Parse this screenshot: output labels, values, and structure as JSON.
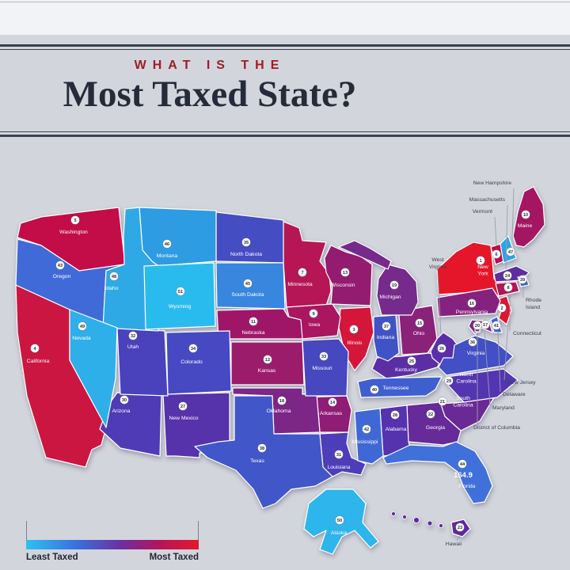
{
  "header": {
    "kicker": "WHAT IS THE",
    "title": "Most Taxed State?"
  },
  "legend": {
    "least_label": "Least Taxed",
    "most_label": "Most Taxed",
    "gradient_left": "#2cbbee",
    "gradient_right": "#e5182b"
  },
  "chart_data": {
    "type": "heatmap",
    "title": "What Is the Most Taxed State?",
    "legend": [
      "Least Taxed",
      "Most Taxed"
    ],
    "note": "US choropleth; each state shows its tax rank badge, 1 = most taxed, 51 = least taxed",
    "series": "map.states"
  },
  "map": {
    "background": "#d3d5dc",
    "badge_fill": "#ffffff",
    "badge_text_color": "#1e2840",
    "label_color": "#ffffff",
    "callout_color": "#3a4150",
    "leader_color": "#9aa0ab",
    "color_stops": [
      [
        1,
        "#e5182b"
      ],
      [
        5,
        "#c2104a"
      ],
      [
        9,
        "#aa155e"
      ],
      [
        14,
        "#8f1f74"
      ],
      [
        18,
        "#7b2887"
      ],
      [
        23,
        "#612c9e"
      ],
      [
        28,
        "#5531ae"
      ],
      [
        33,
        "#4747c0"
      ],
      [
        37,
        "#4153c6"
      ],
      [
        41,
        "#3f62d2"
      ],
      [
        44,
        "#3f70da"
      ],
      [
        46,
        "#2f9ce2"
      ],
      [
        48,
        "#2fa9e6"
      ],
      [
        51,
        "#2cbbee"
      ]
    ],
    "states": [
      {
        "id": "NY",
        "name": "New York",
        "rank": 1
      },
      {
        "id": "NJ",
        "name": "New Jersey",
        "rank": 2
      },
      {
        "id": "IL",
        "name": "Illinois",
        "rank": 3
      },
      {
        "id": "CA",
        "name": "California",
        "rank": 4
      },
      {
        "id": "WA",
        "name": "Washington",
        "rank": 5
      },
      {
        "id": "VT",
        "name": "Vermont",
        "rank": 6
      },
      {
        "id": "MN",
        "name": "Minnesota",
        "rank": 7
      },
      {
        "id": "CT",
        "name": "Connecticut",
        "rank": 8
      },
      {
        "id": "IA",
        "name": "Iowa",
        "rank": 9
      },
      {
        "id": "ME",
        "name": "Maine",
        "rank": 10
      },
      {
        "id": "NE",
        "name": "Nebraska",
        "rank": 11
      },
      {
        "id": "KS",
        "name": "Kansas",
        "rank": 12
      },
      {
        "id": "WI",
        "name": "Wisconsin",
        "rank": 13
      },
      {
        "id": "AR",
        "name": "Arkansas",
        "rank": 14
      },
      {
        "id": "OH",
        "name": "Ohio",
        "rank": 15
      },
      {
        "id": "PA",
        "name": "Pennsylvania",
        "rank": 16
      },
      {
        "id": "MD",
        "name": "Maryland",
        "rank": 17
      },
      {
        "id": "OK",
        "name": "Oklahoma",
        "rank": 18
      },
      {
        "id": "MI",
        "name": "Michigan",
        "rank": 19
      },
      {
        "id": "DC",
        "name": "District of Columbia",
        "rank": 20
      },
      {
        "id": "SC",
        "name": "South Carolina",
        "rank": 21
      },
      {
        "id": "GA",
        "name": "Georgia",
        "rank": 22
      },
      {
        "id": "HI",
        "name": "Hawaii",
        "rank": 23
      },
      {
        "id": "MA",
        "name": "Massachusetts",
        "rank": 24
      },
      {
        "id": "KY",
        "name": "Kentucky",
        "rank": 25
      },
      {
        "id": "WV",
        "name": "West Virginia",
        "rank": 26
      },
      {
        "id": "NM",
        "name": "New Mexico",
        "rank": 27
      },
      {
        "id": "AL",
        "name": "Alabama",
        "rank": 28
      },
      {
        "id": "NC",
        "name": "North Carolina",
        "rank": 29
      },
      {
        "id": "AZ",
        "name": "Arizona",
        "rank": 30
      },
      {
        "id": "LA",
        "name": "Louisiana",
        "rank": 31
      },
      {
        "id": "UT",
        "name": "Utah",
        "rank": 32
      },
      {
        "id": "MO",
        "name": "Missouri",
        "rank": 33
      },
      {
        "id": "CO",
        "name": "Colorado",
        "rank": 34
      },
      {
        "id": "ND",
        "name": "North Dakota",
        "rank": 35
      },
      {
        "id": "VA",
        "name": "Virginia",
        "rank": 36
      },
      {
        "id": "IN",
        "name": "Indiana",
        "rank": 37
      },
      {
        "id": "TX",
        "name": "Texas",
        "rank": 38
      },
      {
        "id": "RI",
        "name": "Rhode Island",
        "rank": 39
      },
      {
        "id": "TN",
        "name": "Tennessee",
        "rank": 40
      },
      {
        "id": "DE",
        "name": "Delaware",
        "rank": 41
      },
      {
        "id": "MS",
        "name": "Mississippi",
        "rank": 42
      },
      {
        "id": "OR",
        "name": "Oregon",
        "rank": 43
      },
      {
        "id": "FL",
        "name": "Florida",
        "rank": 44,
        "value": "164.9"
      },
      {
        "id": "SD",
        "name": "South Dakota",
        "rank": 45
      },
      {
        "id": "MT",
        "name": "Montana",
        "rank": 46
      },
      {
        "id": "NH",
        "name": "New Hampshire",
        "rank": 47
      },
      {
        "id": "ID",
        "name": "Idaho",
        "rank": 48
      },
      {
        "id": "NV",
        "name": "Nevada",
        "rank": 49
      },
      {
        "id": "AK",
        "name": "Alaska",
        "rank": 50
      },
      {
        "id": "WY",
        "name": "Wyoming",
        "rank": 51
      }
    ],
    "callouts": [
      {
        "target": "NH",
        "label": "New Hampshire"
      },
      {
        "target": "MA",
        "label": "Massachusetts"
      },
      {
        "target": "VT",
        "label": "Vermont"
      },
      {
        "target": "WV",
        "label": "West Virginia"
      },
      {
        "target": "RI",
        "label": "Rhode Island"
      },
      {
        "target": "CT",
        "label": "Connecticut"
      },
      {
        "target": "NJ",
        "label": "New Jersey"
      },
      {
        "target": "DE",
        "label": "Delaware"
      },
      {
        "target": "MD",
        "label": "Maryland"
      },
      {
        "target": "DC",
        "label": "District of Columbia"
      },
      {
        "target": "HI",
        "label": "Hawaii"
      }
    ]
  }
}
